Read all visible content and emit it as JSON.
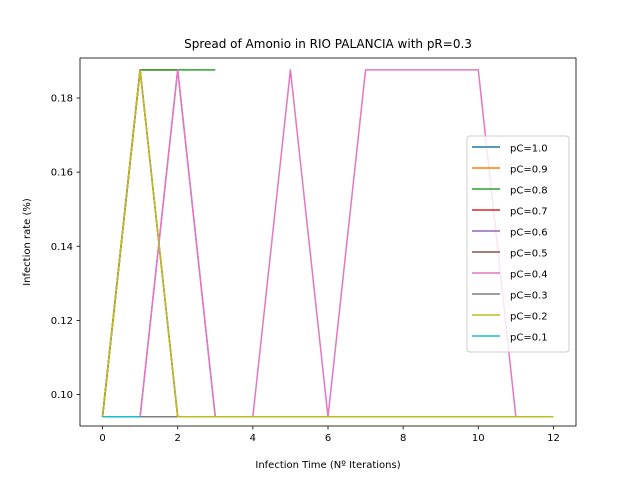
{
  "chart_data": {
    "type": "line",
    "title": "Spread of Amonio in RIO PALANCIA with pR=0.3",
    "xlabel": "Infection Time (Nº Iterations)",
    "ylabel": "Infection rate (%)",
    "xlim": [
      -0.6,
      12.6
    ],
    "ylim": [
      0.0915,
      0.1908
    ],
    "xticks": [
      0,
      2,
      4,
      6,
      8,
      10,
      12
    ],
    "xtick_labels": [
      "0",
      "2",
      "4",
      "6",
      "8",
      "10",
      "12"
    ],
    "yticks": [
      0.1,
      0.12,
      0.14,
      0.16,
      0.18
    ],
    "ytick_labels": [
      "0.10",
      "0.12",
      "0.14",
      "0.16",
      "0.18"
    ],
    "grid": false,
    "legend_position": "center-right",
    "series": [
      {
        "name": "pC=1.0",
        "color": "#1f77b4",
        "x": [
          0,
          1,
          2
        ],
        "y": [
          0.094,
          0.1876,
          0.1876
        ]
      },
      {
        "name": "pC=0.9",
        "color": "#ff7f0e",
        "x": [
          0,
          1,
          2
        ],
        "y": [
          0.094,
          0.1876,
          0.1876
        ]
      },
      {
        "name": "pC=0.8",
        "color": "#2ca02c",
        "x": [
          0,
          1,
          2,
          3
        ],
        "y": [
          0.094,
          0.1876,
          0.1876,
          0.1876
        ]
      },
      {
        "name": "pC=0.7",
        "color": "#d62728",
        "x": [
          0,
          1,
          2
        ],
        "y": [
          0.094,
          0.1876,
          0.094
        ]
      },
      {
        "name": "pC=0.6",
        "color": "#9467bd",
        "x": [
          0,
          1,
          2,
          3
        ],
        "y": [
          0.094,
          0.094,
          0.1876,
          0.094
        ]
      },
      {
        "name": "pC=0.5",
        "color": "#8c564b",
        "x": [
          0,
          1,
          2,
          3,
          4,
          5
        ],
        "y": [
          0.094,
          0.1876,
          0.094,
          0.094,
          0.094,
          0.094
        ]
      },
      {
        "name": "pC=0.4",
        "color": "#e377c2",
        "x": [
          0,
          1,
          2,
          3,
          4,
          5,
          6,
          7,
          8,
          9,
          10,
          11,
          12
        ],
        "y": [
          0.094,
          0.094,
          0.1876,
          0.094,
          0.094,
          0.1876,
          0.094,
          0.1876,
          0.1876,
          0.1876,
          0.1876,
          0.094,
          0.094
        ]
      },
      {
        "name": "pC=0.3",
        "color": "#7f7f7f",
        "x": [
          0,
          1,
          2,
          3,
          4,
          5
        ],
        "y": [
          0.094,
          0.094,
          0.094,
          0.094,
          0.094,
          0.094
        ]
      },
      {
        "name": "pC=0.2",
        "color": "#bcbd22",
        "x": [
          0,
          1,
          2,
          3,
          4,
          5,
          6,
          7,
          8,
          9,
          10,
          11,
          12
        ],
        "y": [
          0.094,
          0.1876,
          0.094,
          0.094,
          0.094,
          0.094,
          0.094,
          0.094,
          0.094,
          0.094,
          0.094,
          0.094,
          0.094
        ]
      },
      {
        "name": "pC=0.1",
        "color": "#17becf",
        "x": [
          0,
          1
        ],
        "y": [
          0.094,
          0.094
        ]
      }
    ]
  }
}
